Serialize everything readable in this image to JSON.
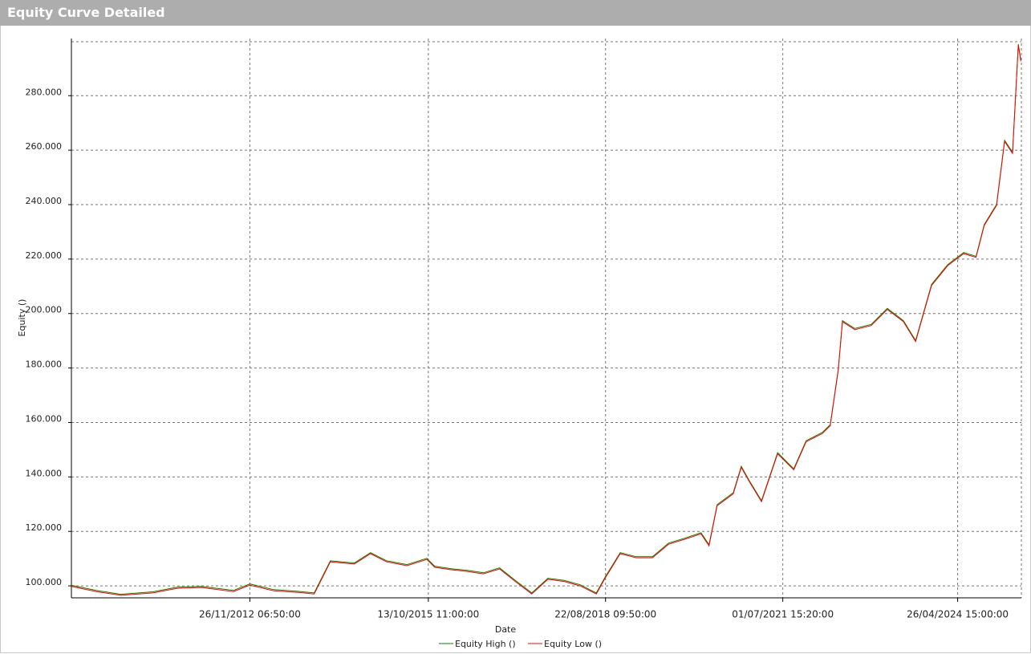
{
  "chart_data": {
    "type": "line",
    "title": "Equity Curve Detailed",
    "x_label": "Date",
    "y_label": "Equity ()",
    "x": [
      "2010-01-10",
      "2010-06-05",
      "2010-10-27",
      "2011-05-05",
      "2011-09-25",
      "2012-02-15",
      "2012-08-22",
      "2012-11-26",
      "2013-04-16",
      "2013-09-06",
      "2013-12-10",
      "2014-03-15",
      "2014-08-04",
      "2014-11-07",
      "2015-02-10",
      "2015-06-10",
      "2015-10-05",
      "2015-11-20",
      "2016-02-25",
      "2016-05-30",
      "2016-09-02",
      "2016-12-06",
      "2017-03-11",
      "2017-06-14",
      "2017-09-17",
      "2017-12-21",
      "2018-03-26",
      "2018-06-29",
      "2018-08-22",
      "2018-11-17",
      "2019-02-20",
      "2019-05-26",
      "2019-08-29",
      "2019-12-02",
      "2020-03-07",
      "2020-04-23",
      "2020-06-10",
      "2020-09-13",
      "2020-10-30",
      "2020-12-17",
      "2021-02-26",
      "2021-06-01",
      "2021-09-04",
      "2021-11-16",
      "2022-02-19",
      "2022-04-07",
      "2022-05-25",
      "2022-06-18",
      "2022-08-30",
      "2022-12-04",
      "2023-03-09",
      "2023-06-12",
      "2023-08-23",
      "2023-10-09",
      "2023-11-25",
      "2024-02-28",
      "2024-06-01",
      "2024-08-13",
      "2024-09-30",
      "2024-12-12",
      "2025-01-28",
      "2025-03-16",
      "2025-04-19",
      "2025-05-04"
    ],
    "series": [
      {
        "name": "Equity High ()",
        "color": "#008000",
        "values": [
          100200,
          98300,
          96900,
          97800,
          99500,
          99800,
          98300,
          100700,
          98600,
          98000,
          97400,
          109200,
          108400,
          112200,
          109200,
          107800,
          110100,
          107200,
          106300,
          105700,
          104800,
          106600,
          101900,
          97400,
          102800,
          102000,
          100400,
          97400,
          103400,
          112200,
          110700,
          110700,
          115700,
          117500,
          119500,
          115100,
          129800,
          134200,
          143900,
          138600,
          131300,
          148900,
          143000,
          153300,
          156300,
          159200,
          179800,
          197400,
          194500,
          196000,
          201900,
          197400,
          190100,
          200400,
          210700,
          218000,
          222400,
          221000,
          232700,
          240100,
          263600,
          259200,
          298900,
          293000
        ]
      },
      {
        "name": "Equity Low ()",
        "color": "#ff0000",
        "values": [
          99800,
          97900,
          96500,
          97400,
          99100,
          99400,
          97900,
          100300,
          98200,
          97600,
          97000,
          108800,
          108000,
          111800,
          108800,
          107400,
          109700,
          106800,
          105900,
          105300,
          104400,
          106200,
          101500,
          97000,
          102400,
          101600,
          100000,
          97000,
          103000,
          111800,
          110300,
          110300,
          115300,
          117100,
          119100,
          114700,
          129400,
          133800,
          143500,
          138200,
          130900,
          148500,
          142600,
          152900,
          155900,
          158800,
          179400,
          197000,
          194100,
          195600,
          201500,
          197000,
          189700,
          200000,
          210300,
          217600,
          222000,
          220600,
          232300,
          239700,
          263200,
          258800,
          298500,
          292600
        ]
      }
    ],
    "xlim": [
      "2010-01-10",
      "2025-05-07"
    ],
    "xticks": [
      {
        "value": "2012-11-26T06:50:00",
        "label": "26/11/2012 06:50:00"
      },
      {
        "value": "2015-10-13T11:00:00",
        "label": "13/10/2015 11:00:00"
      },
      {
        "value": "2018-08-22T09:50:00",
        "label": "22/08/2018 09:50:00"
      },
      {
        "value": "2021-07-01T15:20:00",
        "label": "01/07/2021 15:20:00"
      },
      {
        "value": "2024-04-26T15:00:00",
        "label": "26/04/2024 15:00:00"
      }
    ],
    "ylim": [
      95600,
      301000
    ],
    "yticks": [
      {
        "value": 100000,
        "label": "100.000"
      },
      {
        "value": 120000,
        "label": "120.000"
      },
      {
        "value": 140000,
        "label": "140.000"
      },
      {
        "value": 160000,
        "label": "160.000"
      },
      {
        "value": 180000,
        "label": "180.000"
      },
      {
        "value": 200000,
        "label": "200.000"
      },
      {
        "value": 220000,
        "label": "220.000"
      },
      {
        "value": 240000,
        "label": "240.000"
      },
      {
        "value": 260000,
        "label": "260.000"
      },
      {
        "value": 280000,
        "label": "280.000"
      }
    ],
    "grid": true
  }
}
